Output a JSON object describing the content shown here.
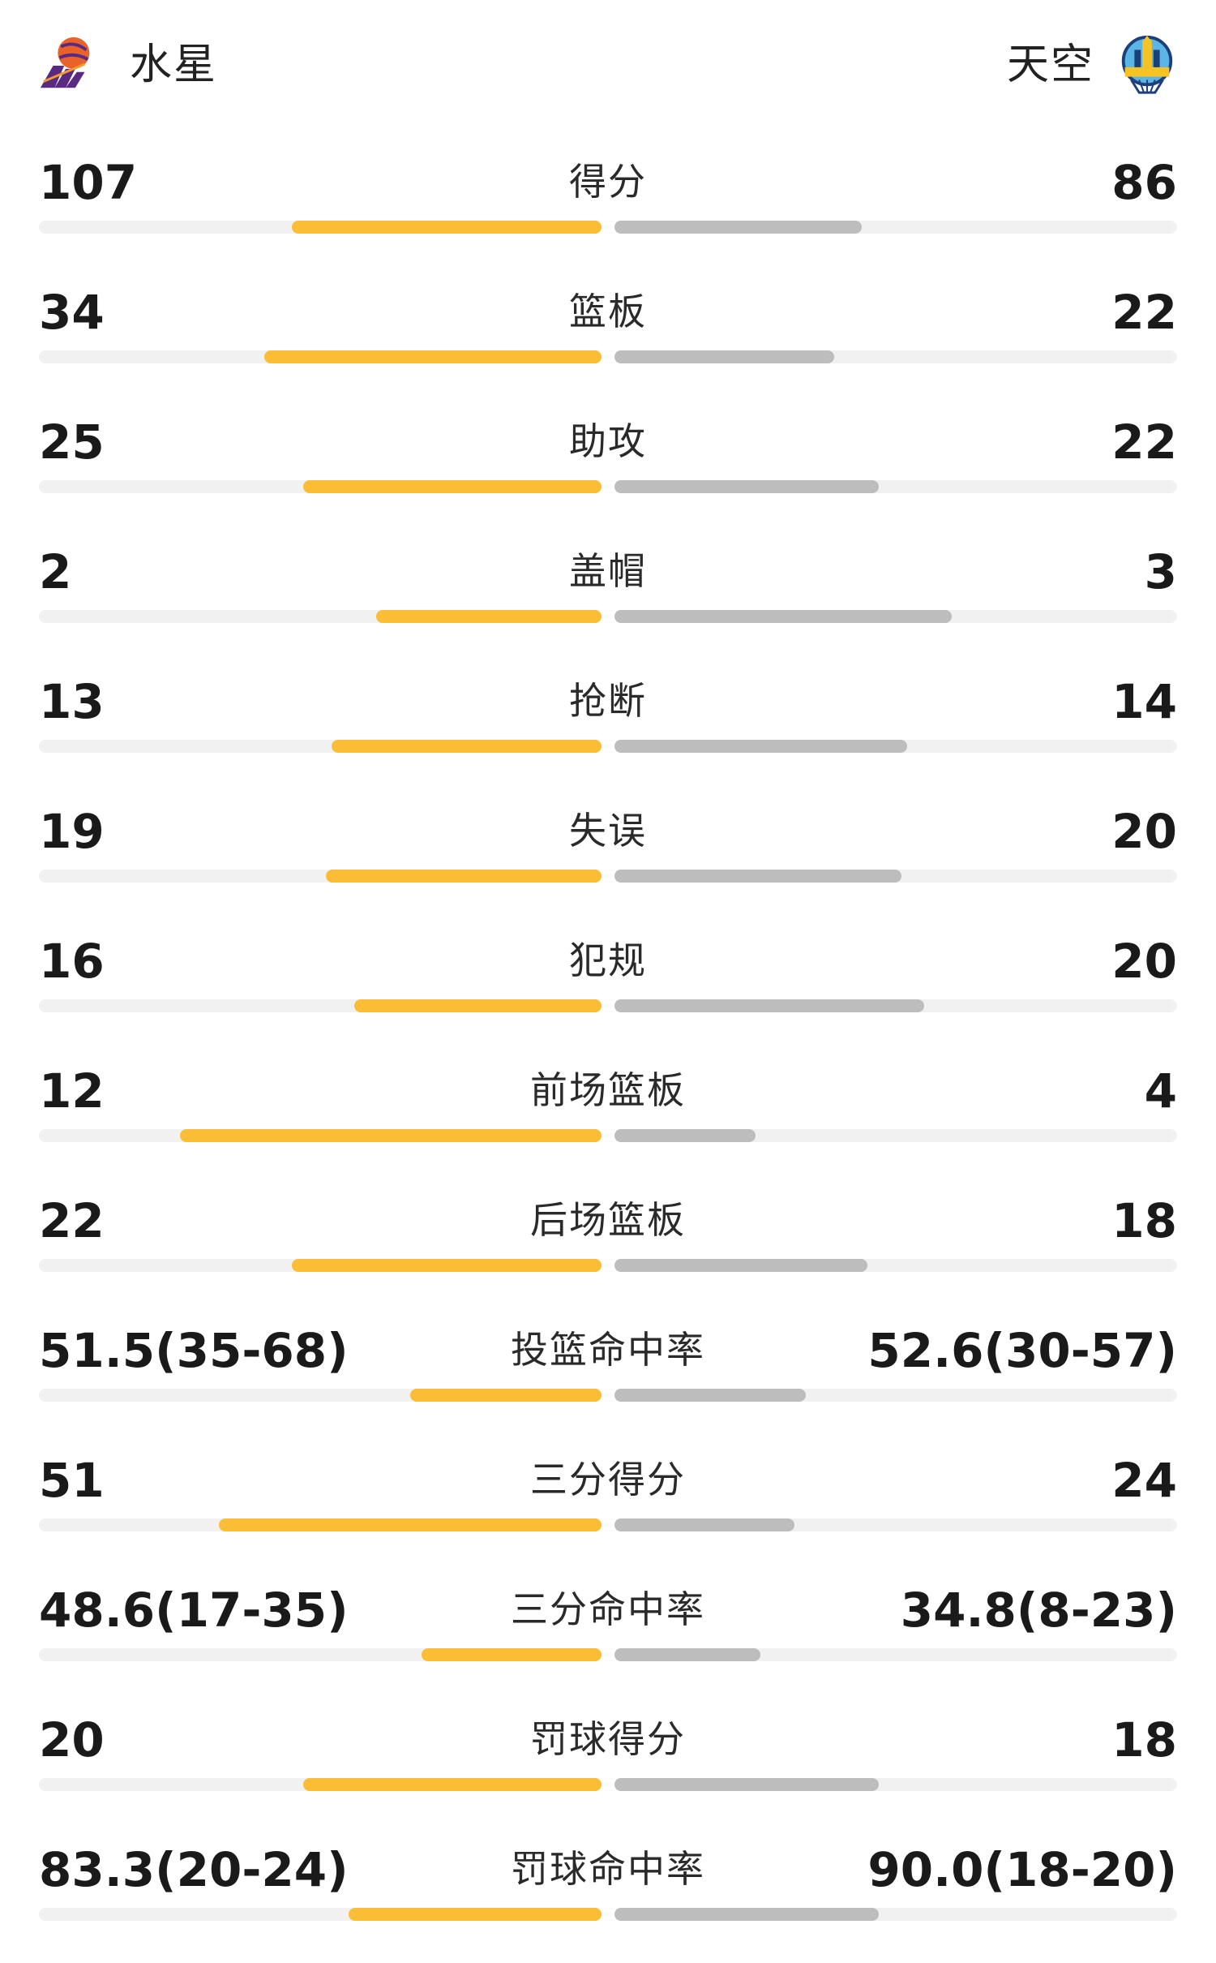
{
  "header": {
    "home_name": "水星",
    "away_name": "天空",
    "home_logo_icon": "phoenix-mercury-logo-icon",
    "away_logo_icon": "chicago-sky-logo-icon"
  },
  "colors": {
    "home_bar": "#fbbd36",
    "away_bar": "#bdbdbd",
    "track": "#f1f1f1"
  },
  "stats": [
    {
      "label": "得分",
      "home": "107",
      "away": "86",
      "home_fraction": 0.55,
      "away_fraction": 0.44
    },
    {
      "label": "篮板",
      "home": "34",
      "away": "22",
      "home_fraction": 0.6,
      "away_fraction": 0.39
    },
    {
      "label": "助攻",
      "home": "25",
      "away": "22",
      "home_fraction": 0.53,
      "away_fraction": 0.47
    },
    {
      "label": "盖帽",
      "home": "2",
      "away": "3",
      "home_fraction": 0.4,
      "away_fraction": 0.6
    },
    {
      "label": "抢断",
      "home": "13",
      "away": "14",
      "home_fraction": 0.48,
      "away_fraction": 0.52
    },
    {
      "label": "失误",
      "home": "19",
      "away": "20",
      "home_fraction": 0.49,
      "away_fraction": 0.51
    },
    {
      "label": "犯规",
      "home": "16",
      "away": "20",
      "home_fraction": 0.44,
      "away_fraction": 0.55
    },
    {
      "label": "前场篮板",
      "home": "12",
      "away": "4",
      "home_fraction": 0.75,
      "away_fraction": 0.25
    },
    {
      "label": "后场篮板",
      "home": "22",
      "away": "18",
      "home_fraction": 0.55,
      "away_fraction": 0.45
    },
    {
      "label": "投篮命中率",
      "home": "51.5(35-68)",
      "away": "52.6(30-57)",
      "home_fraction": 0.34,
      "away_fraction": 0.34
    },
    {
      "label": "三分得分",
      "home": "51",
      "away": "24",
      "home_fraction": 0.68,
      "away_fraction": 0.32
    },
    {
      "label": "三分命中率",
      "home": "48.6(17-35)",
      "away": "34.8(8-23)",
      "home_fraction": 0.32,
      "away_fraction": 0.26
    },
    {
      "label": "罚球得分",
      "home": "20",
      "away": "18",
      "home_fraction": 0.53,
      "away_fraction": 0.47
    },
    {
      "label": "罚球命中率",
      "home": "83.3(20-24)",
      "away": "90.0(18-20)",
      "home_fraction": 0.45,
      "away_fraction": 0.47
    }
  ]
}
